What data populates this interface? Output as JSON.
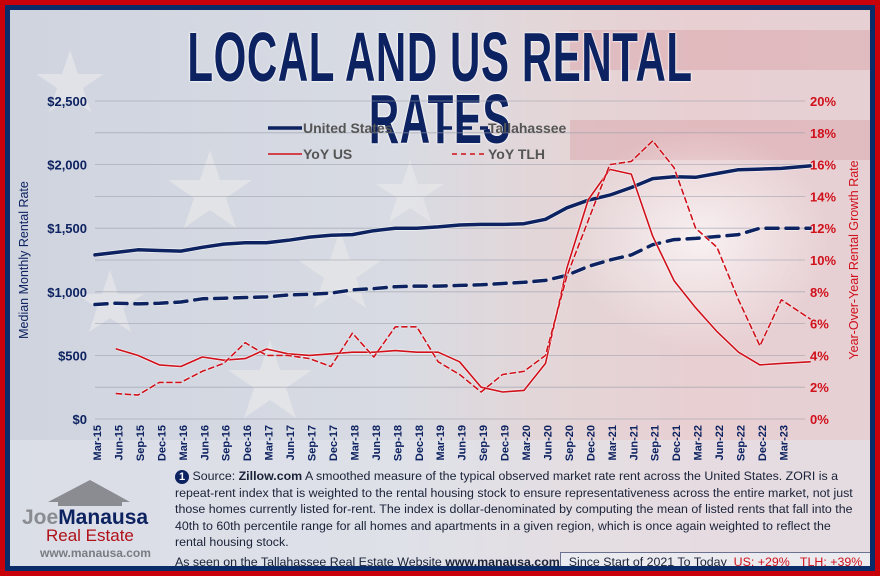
{
  "title": "LOCAL AND US RENTAL RATES",
  "colors": {
    "navy": "#0d2260",
    "red": "#d0101a",
    "frame_red": "#c8000a",
    "frame_navy": "#0a2d6a"
  },
  "chart_data": {
    "type": "line",
    "title": "LOCAL AND US RENTAL RATES",
    "ylabel": "Median Monthly Rental Rate",
    "y2label": "Year-Over-Year Rental Growth Rate",
    "ylim": [
      0,
      2500
    ],
    "y2lim": [
      0,
      20
    ],
    "yticks": [
      "$0",
      "$500",
      "$1,000",
      "$1,500",
      "$2,000",
      "$2,500"
    ],
    "y2ticks": [
      "0%",
      "2%",
      "4%",
      "6%",
      "8%",
      "10%",
      "12%",
      "14%",
      "16%",
      "18%",
      "20%"
    ],
    "grid": true,
    "legend": "top-center",
    "x_ticks": [
      "Mar-15",
      "Jun-15",
      "Sep-15",
      "Dec-15",
      "Mar-16",
      "Jun-16",
      "Sep-16",
      "Dec-16",
      "Mar-17",
      "Jun-17",
      "Sep-17",
      "Dec-17",
      "Mar-18",
      "Jun-18",
      "Sep-18",
      "Dec-18",
      "Mar-19",
      "Jun-19",
      "Sep-19",
      "Dec-19",
      "Mar-20",
      "Jun-20",
      "Sep-20",
      "Dec-20",
      "Mar-21",
      "Jun-21",
      "Sep-21",
      "Dec-21",
      "Mar-22",
      "Jun-22",
      "Sep-22",
      "Dec-22",
      "Mar-23"
    ],
    "x": [
      "Mar-15",
      "Jun-15",
      "Sep-15",
      "Dec-15",
      "Mar-16",
      "Jun-16",
      "Sep-16",
      "Dec-16",
      "Mar-17",
      "Jun-17",
      "Sep-17",
      "Dec-17",
      "Mar-18",
      "Jun-18",
      "Sep-18",
      "Dec-18",
      "Mar-19",
      "Jun-19",
      "Sep-19",
      "Dec-19",
      "Mar-20",
      "Jun-20",
      "Sep-20",
      "Dec-20",
      "Mar-21",
      "Jun-21",
      "Sep-21",
      "Dec-21",
      "Mar-22",
      "Jun-22",
      "Sep-22",
      "Dec-22",
      "Mar-23",
      "May-23"
    ],
    "series": [
      {
        "name": "United States",
        "axis": "left",
        "style": "solid-thick",
        "color": "#0d2260",
        "values": [
          1290,
          1310,
          1330,
          1325,
          1320,
          1350,
          1375,
          1385,
          1385,
          1405,
          1430,
          1445,
          1450,
          1480,
          1500,
          1500,
          1510,
          1525,
          1530,
          1530,
          1535,
          1570,
          1660,
          1720,
          1760,
          1820,
          1890,
          1905,
          1900,
          1930,
          1960,
          1965,
          1970,
          1990
        ]
      },
      {
        "name": "Tallahassee",
        "axis": "left",
        "style": "dashed-thick",
        "color": "#0d2260",
        "values": [
          900,
          910,
          905,
          910,
          920,
          945,
          950,
          955,
          960,
          975,
          980,
          990,
          1015,
          1025,
          1040,
          1045,
          1045,
          1050,
          1055,
          1065,
          1075,
          1090,
          1130,
          1200,
          1250,
          1290,
          1370,
          1410,
          1420,
          1435,
          1450,
          1500,
          1500,
          1500
        ]
      },
      {
        "name": "YoY US",
        "axis": "right",
        "style": "solid-thin",
        "color": "#d0101a",
        "values": [
          null,
          4.4,
          4.0,
          3.4,
          3.3,
          3.9,
          3.7,
          3.8,
          4.4,
          4.1,
          4.0,
          4.1,
          4.2,
          4.2,
          4.3,
          4.2,
          4.2,
          3.6,
          2.0,
          1.7,
          1.8,
          3.5,
          9.5,
          13.8,
          15.7,
          15.4,
          11.5,
          8.7,
          7.0,
          5.5,
          4.2,
          3.4,
          3.5,
          3.6
        ]
      },
      {
        "name": "YoY TLH",
        "axis": "right",
        "style": "dashed-thin",
        "color": "#d0101a",
        "values": [
          null,
          1.6,
          1.5,
          2.3,
          2.3,
          3.0,
          3.5,
          4.8,
          4.0,
          4.0,
          3.8,
          3.3,
          5.4,
          3.9,
          5.8,
          5.8,
          3.6,
          2.8,
          1.7,
          2.8,
          3.0,
          4.0,
          9.0,
          12.5,
          16.0,
          16.2,
          17.5,
          15.8,
          12.0,
          10.8,
          7.5,
          4.6,
          7.5,
          6.3
        ]
      }
    ]
  },
  "footnote": {
    "number": "1",
    "source_label": "Source:",
    "source_site": "Zillow.com",
    "text": "A smoothed measure of the typical observed market rate rent across the United States. ZORI is a repeat-rent index that is weighted to the rental housing stock to ensure representativeness across the entire market, not just those homes currently listed for-rent. The index is dollar-denominated by computing the mean of listed rents that fall into the 40th to 60th percentile range for all homes and apartments in a given region, which is once again weighted to reflect the rental housing stock.",
    "seen_on": "As seen on the Tallahassee Real Estate Website",
    "website": "www.manausa.com"
  },
  "summary": {
    "label": "Since Start of 2021 To Today",
    "us": "US: +29%",
    "tlh": "TLH: +39%"
  },
  "logo": {
    "name_first": "Joe",
    "name_last": "Manausa",
    "sub": "Real Estate",
    "url": "www.manausa.com"
  }
}
